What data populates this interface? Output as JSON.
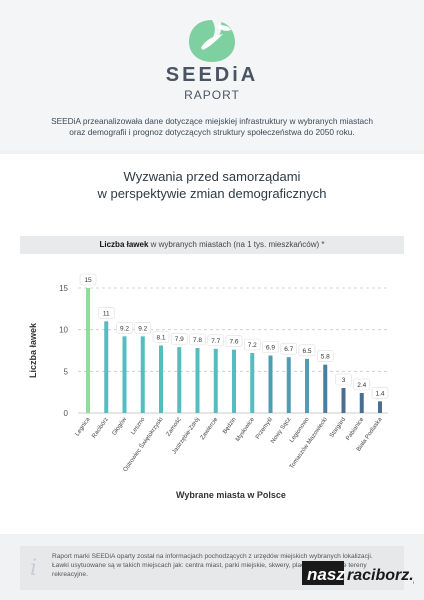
{
  "header": {
    "brand": "SEEDiA",
    "subtitle": "RAPORT",
    "intro_line1": "SEEDiA przeanalizowała dane dotyczące miejskiej infrastruktury w wybranych miastach",
    "intro_line2": "oraz demografii i prognoz dotyczących struktury społeczeństwa do 2050 roku."
  },
  "section": {
    "title_line1": "Wyzwania przed samorządami",
    "title_line2": "w perspektywie zmian demograficznych",
    "bar_heading_bold": "Liczba ławek",
    "bar_heading_rest": " w wybranych miastach (na 1 tys. mieszkańców) *"
  },
  "footer": {
    "icon": "info-icon",
    "note": "Raport marki SEEDiA oparty został na informacjach pochodzących z urzędów miejskich wybranych lokalizacji. Ławki usytuowane są w takich miejscach jak: centra miast, parki miejskie, skwery, place zabaw i inne tereny rekreacyjne."
  },
  "watermark": {
    "part1": "nasz",
    "part2": "raciborz.pl"
  },
  "colors": {
    "highlight": "#8fdc9b",
    "bars": [
      "#8fdc9b",
      "#55bcc0",
      "#55bcc0",
      "#55bcc0",
      "#55bcc0",
      "#55bcc0",
      "#55bcc0",
      "#55bcc0",
      "#55bcc0",
      "#55bcc0",
      "#4f9cb4",
      "#4f9cb4",
      "#4f9cb4",
      "#4a7e9f",
      "#4a6e92",
      "#4a6e92",
      "#4a6e92"
    ],
    "brand": "#4a5563"
  },
  "chart_data": {
    "type": "bar",
    "title": "Liczba ławek w wybranych miastach (na 1 tys. mieszkańców) *",
    "xlabel": "Wybrane miasta w Polsce",
    "ylabel": "Liczba ławek",
    "ylim": [
      0,
      15
    ],
    "yticks": [
      0,
      5,
      10,
      15
    ],
    "grid": true,
    "categories": [
      "Legnica",
      "Racibórz",
      "Głogów",
      "Leszno",
      "Ostrowiec Świętokrzyski",
      "Zamość",
      "Jastrzębie-Zdrój",
      "Zawiercie",
      "Będzin",
      "Mysłowice",
      "Przemyśl",
      "Nowy Sącz",
      "Legionowo",
      "Tomaszów Mazowiecki",
      "Stargard",
      "Pabianice",
      "Biała Podlaska"
    ],
    "values": [
      15,
      11,
      9.2,
      9.2,
      8.1,
      7.9,
      7.8,
      7.7,
      7.6,
      7.2,
      6.9,
      6.7,
      6.5,
      5.8,
      3,
      2.4,
      1.4
    ],
    "value_labels": [
      "15",
      "11",
      "9.2",
      "9.2",
      "8.1",
      "7.9",
      "7.8",
      "7.7",
      "7.6",
      "7.2",
      "6.9",
      "6.7",
      "6.5",
      "5.8",
      "3",
      "2.4",
      "1.4"
    ]
  }
}
